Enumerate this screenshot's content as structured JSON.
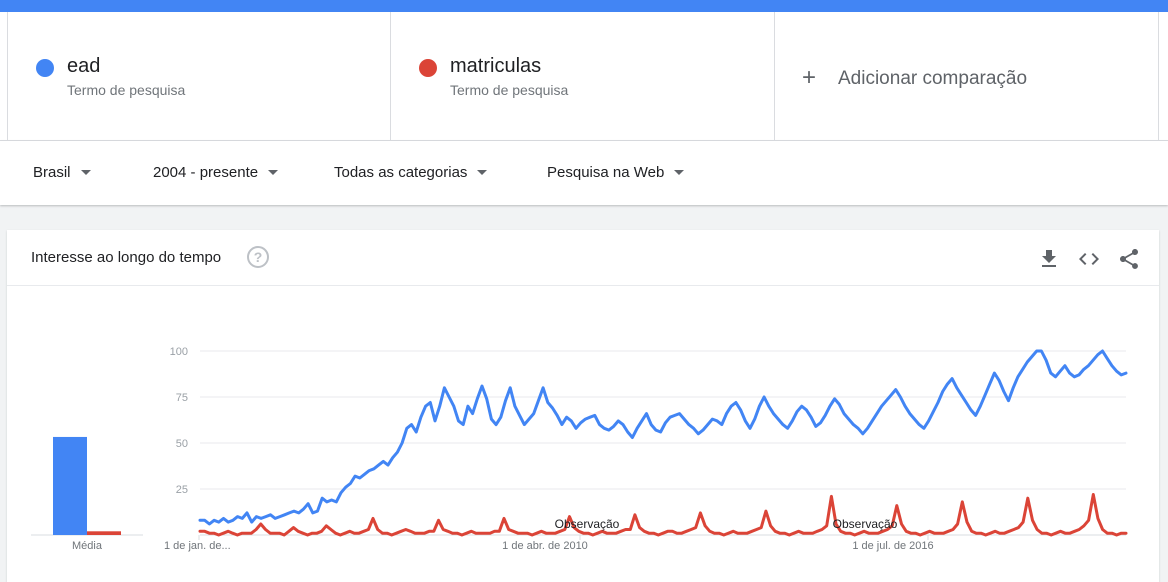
{
  "terms": [
    {
      "name": "ead",
      "subtitle": "Termo de pesquisa",
      "color": "#4285f4"
    },
    {
      "name": "matriculas",
      "subtitle": "Termo de pesquisa",
      "color": "#db4437"
    }
  ],
  "add_comparison": {
    "icon": "plus-icon",
    "label": "Adicionar comparação"
  },
  "filters": {
    "region": "Brasil",
    "period": "2004 - presente",
    "category": "Todas as categorias",
    "search_type": "Pesquisa na Web"
  },
  "card": {
    "title": "Interesse ao longo do tempo",
    "help_icon": "?",
    "tools": [
      "download-icon",
      "embed-code-icon",
      "share-icon"
    ]
  },
  "chart_data": [
    {
      "type": "bar",
      "categories": [
        "Média"
      ],
      "series": [
        {
          "name": "ead",
          "values": [
            53
          ],
          "color": "#4285f4"
        },
        {
          "name": "matriculas",
          "values": [
            2
          ],
          "color": "#db4437"
        }
      ],
      "ylim": [
        0,
        100
      ]
    },
    {
      "type": "line",
      "yticks": [
        100,
        75,
        50,
        25
      ],
      "ylim": [
        0,
        100
      ],
      "xticks": [
        "1 de jan. de...",
        "1 de abr. de 2010",
        "1 de jul. de 2016"
      ],
      "annotations": [
        "Observação",
        "Observação"
      ],
      "series": [
        {
          "name": "ead",
          "color": "#4285f4",
          "values": [
            8,
            8,
            6,
            8,
            7,
            9,
            7,
            8,
            10,
            9,
            12,
            7,
            10,
            9,
            10,
            11,
            9,
            10,
            11,
            12,
            13,
            12,
            14,
            17,
            12,
            13,
            20,
            18,
            19,
            18,
            23,
            26,
            28,
            32,
            31,
            33,
            35,
            36,
            38,
            40,
            38,
            42,
            45,
            50,
            58,
            60,
            56,
            64,
            70,
            72,
            62,
            70,
            80,
            75,
            70,
            62,
            60,
            70,
            66,
            74,
            81,
            74,
            63,
            60,
            64,
            73,
            80,
            70,
            65,
            60,
            63,
            66,
            73,
            80,
            72,
            69,
            65,
            60,
            64,
            62,
            58,
            61,
            63,
            64,
            65,
            60,
            58,
            57,
            59,
            62,
            60,
            56,
            53,
            58,
            62,
            66,
            60,
            57,
            56,
            61,
            64,
            65,
            66,
            63,
            60,
            58,
            55,
            57,
            60,
            63,
            62,
            60,
            66,
            70,
            72,
            68,
            62,
            58,
            63,
            70,
            75,
            70,
            66,
            63,
            60,
            58,
            62,
            67,
            70,
            68,
            64,
            59,
            61,
            65,
            70,
            74,
            71,
            66,
            63,
            60,
            58,
            55,
            58,
            62,
            66,
            70,
            73,
            76,
            79,
            75,
            70,
            66,
            63,
            60,
            58,
            62,
            67,
            72,
            78,
            82,
            85,
            80,
            76,
            72,
            68,
            65,
            70,
            76,
            82,
            88,
            84,
            78,
            73,
            80,
            86,
            90,
            94,
            97,
            100,
            100,
            95,
            88,
            86,
            89,
            92,
            88,
            86,
            87,
            90,
            92,
            95,
            98,
            100,
            96,
            92,
            89,
            87,
            88
          ]
        },
        {
          "name": "matriculas",
          "color": "#db4437",
          "values": [
            2,
            2,
            1,
            1,
            0,
            1,
            2,
            1,
            0,
            1,
            1,
            1,
            3,
            6,
            3,
            1,
            1,
            1,
            0,
            2,
            4,
            2,
            1,
            0,
            1,
            1,
            2,
            5,
            3,
            1,
            0,
            1,
            2,
            1,
            1,
            2,
            3,
            9,
            3,
            1,
            1,
            0,
            1,
            2,
            3,
            2,
            1,
            1,
            1,
            2,
            2,
            8,
            3,
            2,
            1,
            1,
            0,
            1,
            2,
            1,
            1,
            1,
            1,
            2,
            2,
            9,
            3,
            2,
            1,
            1,
            1,
            0,
            1,
            2,
            1,
            1,
            1,
            2,
            3,
            10,
            4,
            2,
            1,
            1,
            0,
            1,
            2,
            1,
            1,
            1,
            2,
            3,
            3,
            11,
            4,
            2,
            1,
            1,
            0,
            1,
            2,
            2,
            1,
            1,
            2,
            3,
            4,
            12,
            5,
            2,
            1,
            1,
            0,
            1,
            2,
            1,
            1,
            1,
            2,
            3,
            4,
            13,
            5,
            2,
            1,
            1,
            0,
            1,
            2,
            1,
            1,
            1,
            2,
            3,
            5,
            21,
            6,
            2,
            1,
            1,
            0,
            1,
            2,
            1,
            1,
            1,
            2,
            3,
            5,
            16,
            6,
            2,
            1,
            1,
            0,
            1,
            2,
            1,
            1,
            1,
            2,
            3,
            6,
            18,
            7,
            2,
            1,
            1,
            0,
            1,
            2,
            1,
            1,
            2,
            3,
            4,
            7,
            20,
            8,
            3,
            1,
            1,
            0,
            1,
            2,
            1,
            1,
            2,
            3,
            5,
            8,
            22,
            9,
            3,
            1,
            1,
            0,
            1,
            1
          ]
        }
      ]
    }
  ]
}
